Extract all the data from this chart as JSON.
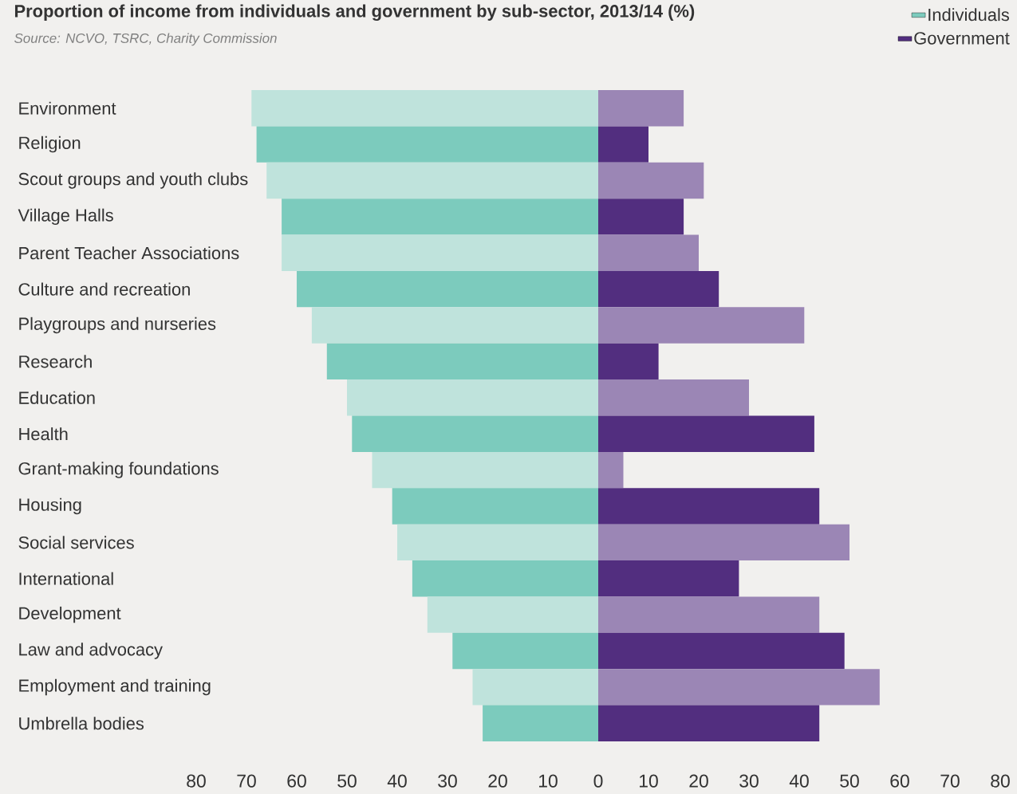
{
  "chart_data": [
    {
      "type": "bar",
      "orientation": "horizontal",
      "title": "Proportion of income from individuals and government by sub-sector, 2013/14 (%)",
      "annotations": [
        "Source: NCVO, TSRC, Charity Commission"
      ],
      "categories": [
        "Environment",
        "Religion",
        "Scout groups and youth clubs",
        "Village Halls",
        "Parent Teacher Associations",
        "Culture and recreation",
        "Playgroups and nurseries",
        "Research",
        "Education",
        "Health",
        "Grant-making foundations",
        "Housing",
        "Social services",
        "International",
        "Development",
        "Law and advocacy",
        "Employment and training",
        "Umbrella bodies"
      ],
      "series": [
        {
          "name": "Individuals",
          "color": "#7ccbbd",
          "colors": [
            "#bfe3dc",
            "#7ccbbd",
            "#bfe3dc",
            "#7ccbbd",
            "#bfe3dc",
            "#7ccbbd",
            "#bfe3dc",
            "#7ccbbd",
            "#bfe3dc",
            "#7ccbbd",
            "#bfe3dc",
            "#7ccbbd",
            "#bfe3dc",
            "#7ccbbd",
            "#bfe3dc",
            "#7ccbbd",
            "#bfe3dc",
            "#7ccbbd"
          ],
          "values": [
            69,
            68,
            66,
            63,
            63,
            60,
            57,
            54,
            50,
            49,
            45,
            41,
            40,
            37,
            34,
            29,
            25,
            23
          ]
        }
      ],
      "xlim": [
        80,
        0
      ],
      "xticks": [
        80,
        70,
        60,
        50,
        40,
        30,
        20,
        10
      ],
      "legend": "top right"
    },
    {
      "type": "bar",
      "orientation": "horizontal",
      "categories": [
        null,
        null,
        null,
        null,
        null,
        null,
        null,
        null,
        null,
        null,
        null,
        null,
        null,
        null,
        null,
        null,
        null,
        null
      ],
      "series": [
        {
          "name": "Government",
          "color": "#522e7f",
          "colors": [
            "#9b86b5",
            "#522e7f",
            "#9b86b5",
            "#522e7f",
            "#9b86b5",
            "#522e7f",
            "#9b86b5",
            "#522e7f",
            "#9b86b5",
            "#522e7f",
            "#9b86b5",
            "#522e7f",
            "#9b86b5",
            "#522e7f",
            "#9b86b5",
            "#522e7f",
            "#9b86b5",
            "#522e7f"
          ],
          "values": [
            17,
            10,
            21,
            17,
            20,
            24,
            41,
            12,
            30,
            43,
            5,
            44,
            50,
            28,
            44,
            49,
            56,
            44
          ]
        }
      ],
      "xlim": [
        0,
        80
      ],
      "xticks": [
        0,
        10,
        20,
        30,
        40,
        50,
        60,
        70,
        80
      ],
      "tick_labels": "x",
      "legend": "top right"
    }
  ]
}
